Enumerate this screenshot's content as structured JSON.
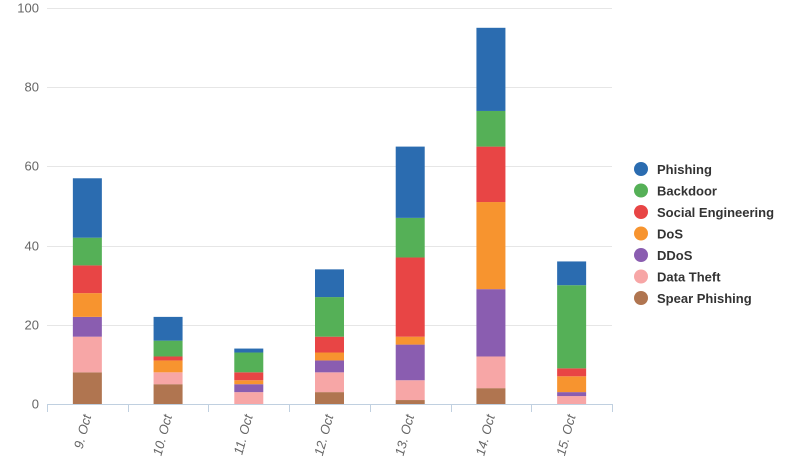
{
  "chart_data": {
    "type": "bar",
    "stacked": true,
    "categories": [
      "9. Oct",
      "10. Oct",
      "11. Oct",
      "12. Oct",
      "13. Oct",
      "14. Oct",
      "15. Oct"
    ],
    "ylim": [
      0,
      100
    ],
    "yticks": [
      0,
      20,
      40,
      60,
      80,
      100
    ],
    "grid": true,
    "legend_position": "right",
    "series": [
      {
        "name": "Spear Phishing",
        "color": "#b07550",
        "values": [
          8,
          5,
          0,
          3,
          1,
          4,
          0
        ]
      },
      {
        "name": "Data Theft",
        "color": "#f7a6a6",
        "values": [
          9,
          3,
          3,
          5,
          5,
          8,
          2
        ]
      },
      {
        "name": "DDoS",
        "color": "#8a5db0",
        "values": [
          5,
          0,
          2,
          3,
          9,
          17,
          1
        ]
      },
      {
        "name": "DoS",
        "color": "#f7942f",
        "values": [
          6,
          3,
          1,
          2,
          2,
          22,
          4
        ]
      },
      {
        "name": "Social Engineering",
        "color": "#e84545",
        "values": [
          7,
          1,
          2,
          4,
          20,
          14,
          2
        ]
      },
      {
        "name": "Backdoor",
        "color": "#55b057",
        "values": [
          7,
          4,
          5,
          10,
          10,
          9,
          21
        ]
      },
      {
        "name": "Phishing",
        "color": "#2b6cb0",
        "values": [
          15,
          6,
          1,
          7,
          18,
          21,
          6
        ]
      }
    ],
    "legend_order": [
      "Phishing",
      "Backdoor",
      "Social Engineering",
      "DoS",
      "DDoS",
      "Data Theft",
      "Spear Phishing"
    ]
  }
}
